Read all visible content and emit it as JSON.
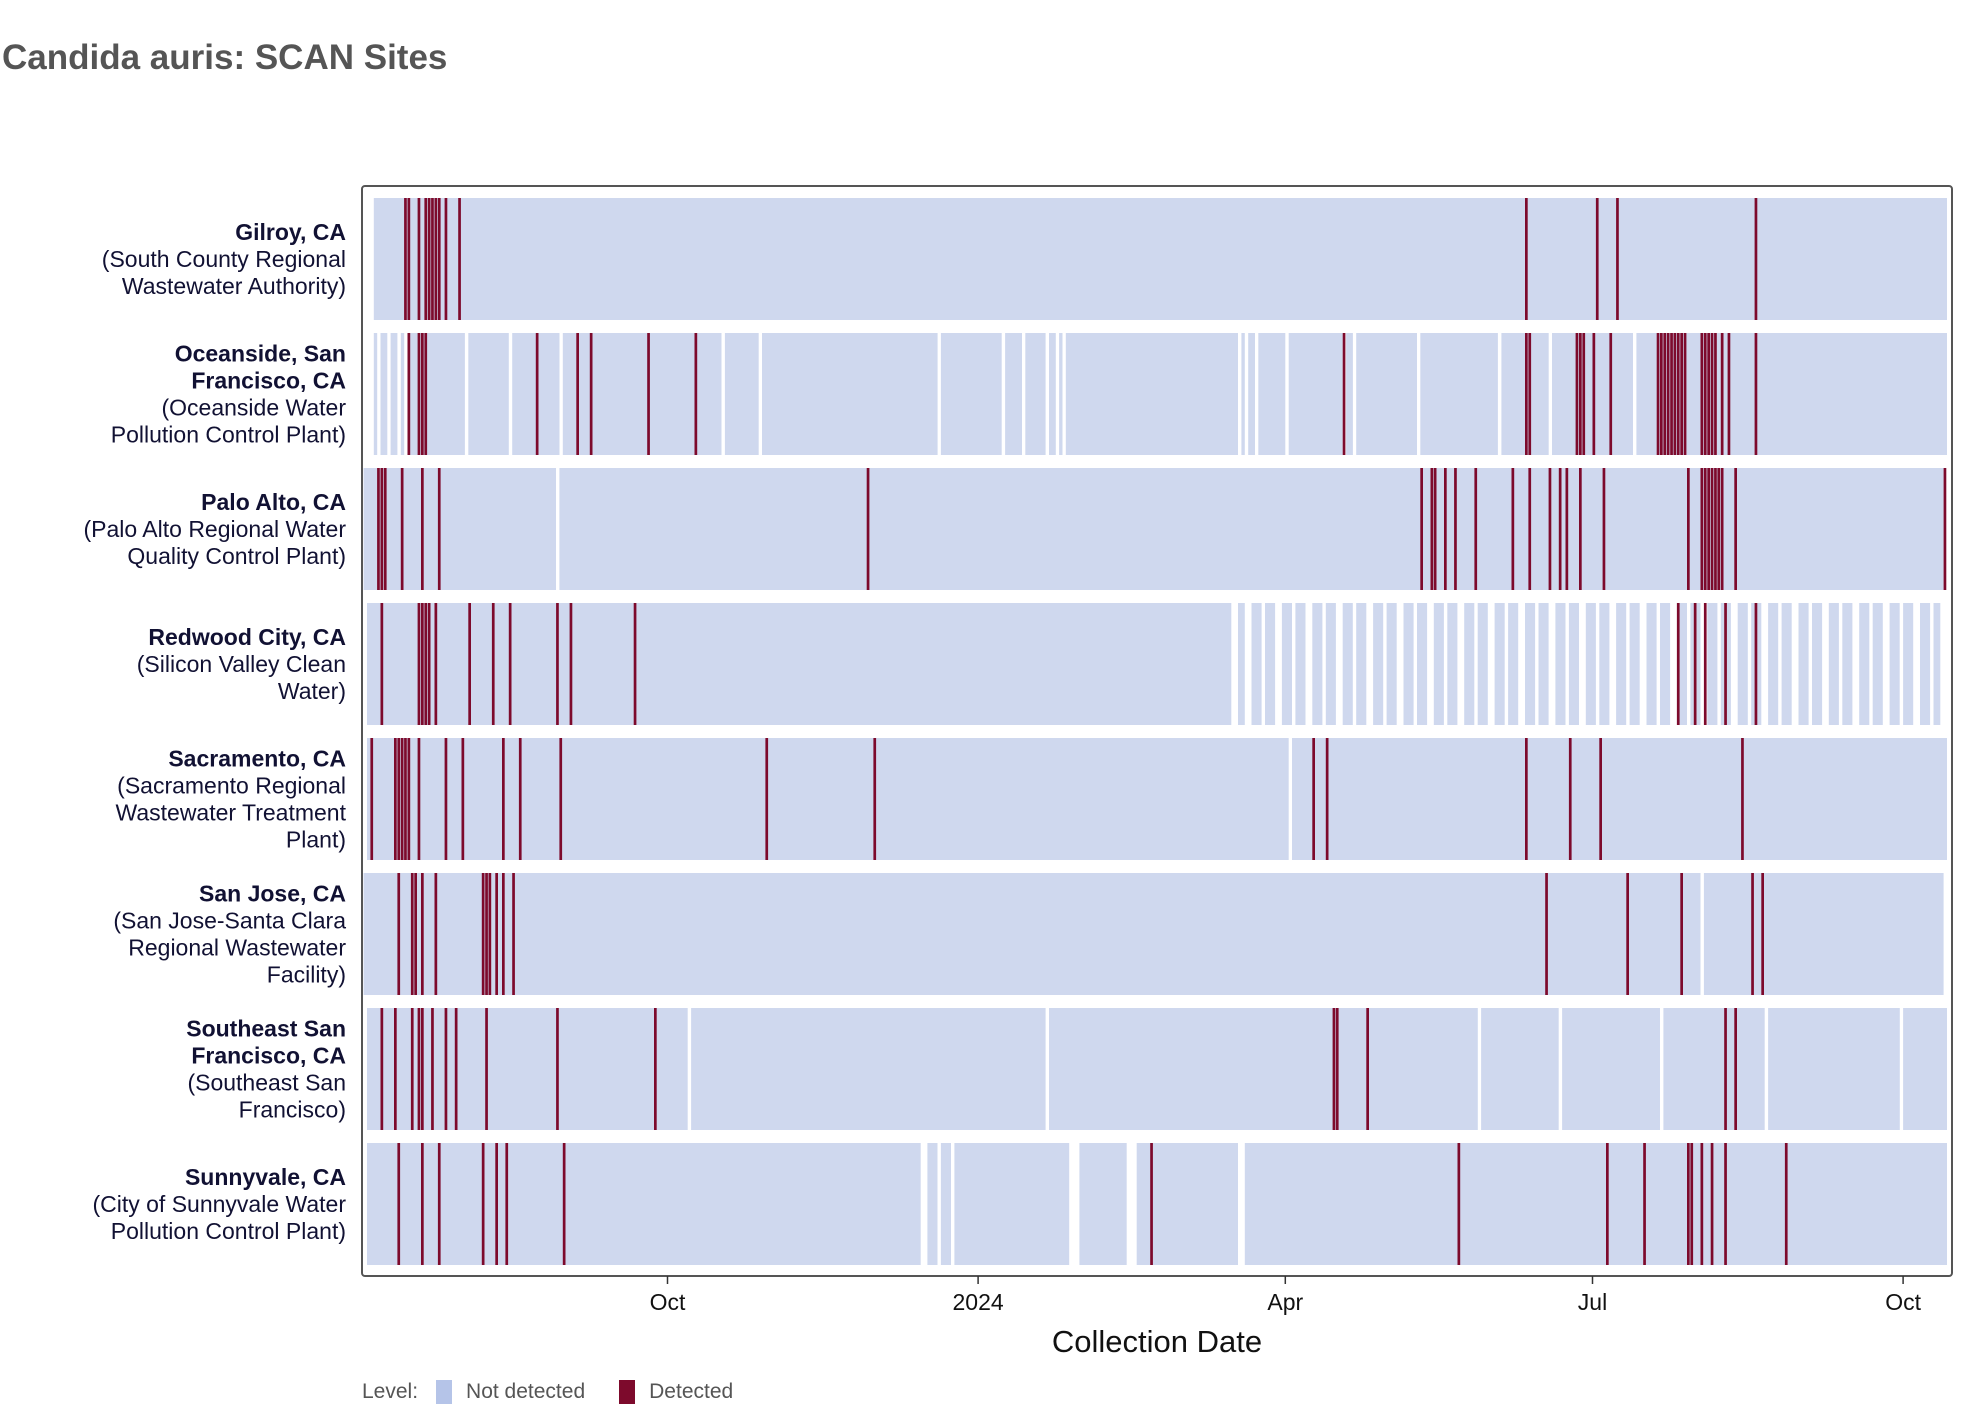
{
  "title": "Candida auris: SCAN Sites",
  "chart_data": {
    "type": "heatmap",
    "title": "Candida auris: SCAN Sites",
    "xlabel": "Collection Date",
    "ylabel": "",
    "x_range": [
      "2023-07-04",
      "2024-10-14"
    ],
    "x_ticks": [
      {
        "date": "2023-10-01",
        "label": "Oct"
      },
      {
        "date": "2024-01-01",
        "label": "2024"
      },
      {
        "date": "2024-04-01",
        "label": "Apr"
      },
      {
        "date": "2024-07-01",
        "label": "Jul"
      },
      {
        "date": "2024-10-01",
        "label": "Oct"
      }
    ],
    "grid": false,
    "legend": {
      "position": "bottom-left",
      "title": "Level:",
      "items": [
        {
          "label": "Not detected",
          "color": "#b5c4e8"
        },
        {
          "label": "Detected",
          "color": "#7d0a2c"
        }
      ]
    },
    "colors": {
      "not_detected": "#cfd8ee",
      "detected": "#7d0a2c",
      "frame": "#555555"
    },
    "sites": [
      {
        "name": "Gilroy, CA",
        "detail": [
          "(South County Regional",
          "Wastewater Authority)"
        ],
        "sampled": [
          [
            "2023-07-06",
            "2024-10-14"
          ]
        ],
        "detected": [
          "2023-07-15",
          "2023-07-16",
          "2023-07-19",
          "2023-07-21",
          "2023-07-22",
          "2023-07-23",
          "2023-07-24",
          "2023-07-25",
          "2023-07-27",
          "2023-07-31",
          "2024-06-11",
          "2024-07-02",
          "2024-07-08",
          "2024-08-18"
        ]
      },
      {
        "name": "Oceanside, San Francisco, CA",
        "detail": [
          "(Oceanside Water",
          "Pollution Control Plant)"
        ],
        "sampled": [
          [
            "2023-07-06",
            "2023-07-07"
          ],
          [
            "2023-07-08",
            "2023-07-10"
          ],
          [
            "2023-07-11",
            "2023-07-13"
          ],
          [
            "2023-07-14",
            "2023-07-15"
          ],
          [
            "2023-07-16",
            "2023-08-02"
          ],
          [
            "2023-08-03",
            "2023-08-15"
          ],
          [
            "2023-08-16",
            "2023-08-30"
          ],
          [
            "2023-08-31",
            "2023-10-17"
          ],
          [
            "2023-10-18",
            "2023-10-28"
          ],
          [
            "2023-10-29",
            "2023-12-20"
          ],
          [
            "2023-12-21",
            "2024-01-08"
          ],
          [
            "2024-01-09",
            "2024-01-14"
          ],
          [
            "2024-01-15",
            "2024-01-21"
          ],
          [
            "2024-01-22",
            "2024-01-24"
          ],
          [
            "2024-01-25",
            "2024-01-26"
          ],
          [
            "2024-01-27",
            "2024-03-18"
          ],
          [
            "2024-03-19",
            "2024-03-20"
          ],
          [
            "2024-03-21",
            "2024-03-23"
          ],
          [
            "2024-03-24",
            "2024-04-01"
          ],
          [
            "2024-04-02",
            "2024-04-18"
          ],
          [
            "2024-04-19",
            "2024-04-21"
          ],
          [
            "2024-04-22",
            "2024-05-10"
          ],
          [
            "2024-05-11",
            "2024-06-03"
          ],
          [
            "2024-06-04",
            "2024-06-18"
          ],
          [
            "2024-06-19",
            "2024-07-13"
          ],
          [
            "2024-07-14",
            "2024-10-14"
          ]
        ],
        "detected": [
          "2023-07-16",
          "2023-07-19",
          "2023-07-20",
          "2023-07-21",
          "2023-08-23",
          "2023-09-04",
          "2023-09-08",
          "2023-09-25",
          "2023-10-09",
          "2024-04-18",
          "2024-06-11",
          "2024-06-12",
          "2024-06-26",
          "2024-06-27",
          "2024-06-28",
          "2024-07-01",
          "2024-07-06",
          "2024-07-20",
          "2024-07-21",
          "2024-07-22",
          "2024-07-23",
          "2024-07-24",
          "2024-07-25",
          "2024-07-26",
          "2024-07-27",
          "2024-07-28",
          "2024-08-02",
          "2024-08-03",
          "2024-08-04",
          "2024-08-05",
          "2024-08-06",
          "2024-08-08",
          "2024-08-10",
          "2024-08-18"
        ]
      },
      {
        "name": "Palo Alto, CA",
        "detail": [
          "(Palo Alto Regional Water",
          "Quality Control Plant)"
        ],
        "sampled": [
          [
            "2023-07-03",
            "2023-08-29"
          ],
          [
            "2023-08-30",
            "2024-10-13"
          ]
        ],
        "detected": [
          "2023-07-07",
          "2023-07-08",
          "2023-07-09",
          "2023-07-14",
          "2023-07-20",
          "2023-07-25",
          "2023-11-29",
          "2024-05-11",
          "2024-05-14",
          "2024-05-15",
          "2024-05-18",
          "2024-05-21",
          "2024-05-27",
          "2024-06-07",
          "2024-06-12",
          "2024-06-18",
          "2024-06-21",
          "2024-06-23",
          "2024-06-27",
          "2024-07-04",
          "2024-07-29",
          "2024-08-02",
          "2024-08-03",
          "2024-08-04",
          "2024-08-05",
          "2024-08-06",
          "2024-08-07",
          "2024-08-08",
          "2024-08-12",
          "2024-10-13"
        ]
      },
      {
        "name": "Redwood City, CA",
        "detail": [
          "(Silicon Valley Clean",
          "Water)"
        ],
        "sampled": [
          [
            "2023-07-04",
            "2024-03-16"
          ],
          [
            "2024-03-18",
            "2024-03-20"
          ],
          [
            "2024-03-22",
            "2024-03-25"
          ],
          [
            "2024-03-26",
            "2024-03-29"
          ],
          [
            "2024-03-31",
            "2024-04-03"
          ],
          [
            "2024-04-04",
            "2024-04-07"
          ],
          [
            "2024-04-09",
            "2024-04-12"
          ],
          [
            "2024-04-13",
            "2024-04-16"
          ],
          [
            "2024-04-18",
            "2024-04-21"
          ],
          [
            "2024-04-22",
            "2024-04-25"
          ],
          [
            "2024-04-27",
            "2024-04-30"
          ],
          [
            "2024-05-01",
            "2024-05-04"
          ],
          [
            "2024-05-06",
            "2024-05-09"
          ],
          [
            "2024-05-10",
            "2024-05-13"
          ],
          [
            "2024-05-15",
            "2024-05-18"
          ],
          [
            "2024-05-19",
            "2024-05-22"
          ],
          [
            "2024-05-24",
            "2024-05-27"
          ],
          [
            "2024-05-28",
            "2024-05-31"
          ],
          [
            "2024-06-02",
            "2024-06-05"
          ],
          [
            "2024-06-06",
            "2024-06-09"
          ],
          [
            "2024-06-11",
            "2024-06-14"
          ],
          [
            "2024-06-15",
            "2024-06-18"
          ],
          [
            "2024-06-20",
            "2024-06-23"
          ],
          [
            "2024-06-24",
            "2024-06-27"
          ],
          [
            "2024-06-29",
            "2024-07-02"
          ],
          [
            "2024-07-03",
            "2024-07-06"
          ],
          [
            "2024-07-08",
            "2024-07-11"
          ],
          [
            "2024-07-12",
            "2024-07-15"
          ],
          [
            "2024-07-17",
            "2024-07-20"
          ],
          [
            "2024-07-21",
            "2024-07-24"
          ],
          [
            "2024-07-26",
            "2024-07-29"
          ],
          [
            "2024-07-30",
            "2024-08-02"
          ],
          [
            "2024-08-04",
            "2024-08-07"
          ],
          [
            "2024-08-08",
            "2024-08-11"
          ],
          [
            "2024-08-13",
            "2024-08-16"
          ],
          [
            "2024-08-17",
            "2024-08-20"
          ],
          [
            "2024-08-22",
            "2024-08-25"
          ],
          [
            "2024-08-26",
            "2024-08-29"
          ],
          [
            "2024-08-31",
            "2024-09-03"
          ],
          [
            "2024-09-04",
            "2024-09-07"
          ],
          [
            "2024-09-09",
            "2024-09-12"
          ],
          [
            "2024-09-13",
            "2024-09-16"
          ],
          [
            "2024-09-18",
            "2024-09-21"
          ],
          [
            "2024-09-22",
            "2024-09-25"
          ],
          [
            "2024-09-27",
            "2024-09-30"
          ],
          [
            "2024-10-01",
            "2024-10-04"
          ],
          [
            "2024-10-06",
            "2024-10-09"
          ],
          [
            "2024-10-10",
            "2024-10-12"
          ]
        ],
        "detected": [
          "2023-07-08",
          "2023-07-19",
          "2023-07-20",
          "2023-07-21",
          "2023-07-22",
          "2023-07-24",
          "2023-08-03",
          "2023-08-10",
          "2023-08-15",
          "2023-08-29",
          "2023-09-02",
          "2023-09-21",
          "2024-07-26",
          "2024-07-31",
          "2024-08-03",
          "2024-08-09",
          "2024-08-18"
        ]
      },
      {
        "name": "Sacramento, CA",
        "detail": [
          "(Sacramento Regional",
          "Wastewater Treatment",
          "Plant)"
        ],
        "sampled": [
          [
            "2023-07-04",
            "2024-04-02"
          ],
          [
            "2024-04-03",
            "2024-10-14"
          ]
        ],
        "detected": [
          "2023-07-05",
          "2023-07-12",
          "2023-07-13",
          "2023-07-14",
          "2023-07-15",
          "2023-07-16",
          "2023-07-19",
          "2023-07-27",
          "2023-08-01",
          "2023-08-13",
          "2023-08-18",
          "2023-08-30",
          "2023-10-30",
          "2023-12-01",
          "2024-04-09",
          "2024-04-13",
          "2024-06-11",
          "2024-06-24",
          "2024-07-03",
          "2024-08-14"
        ]
      },
      {
        "name": "San Jose, CA",
        "detail": [
          "(San Jose-Santa Clara",
          "Regional Wastewater",
          "Facility)"
        ],
        "sampled": [
          [
            "2023-07-03",
            "2023-07-04"
          ],
          [
            "2023-07-04",
            "2024-08-02"
          ],
          [
            "2024-08-03",
            "2024-10-13"
          ]
        ],
        "detected": [
          "2023-07-13",
          "2023-07-17",
          "2023-07-18",
          "2023-07-20",
          "2023-07-24",
          "2023-08-07",
          "2023-08-08",
          "2023-08-09",
          "2023-08-11",
          "2023-08-13",
          "2023-08-16",
          "2024-06-17",
          "2024-07-11",
          "2024-07-27",
          "2024-08-17",
          "2024-08-20"
        ]
      },
      {
        "name": "Southeast San Francisco, CA",
        "detail": [
          "(Southeast San",
          "Francisco)"
        ],
        "sampled": [
          [
            "2023-07-04",
            "2023-10-07"
          ],
          [
            "2023-10-08",
            "2024-01-21"
          ],
          [
            "2024-01-22",
            "2024-05-28"
          ],
          [
            "2024-05-29",
            "2024-06-21"
          ],
          [
            "2024-06-22",
            "2024-07-21"
          ],
          [
            "2024-07-22",
            "2024-08-21"
          ],
          [
            "2024-08-22",
            "2024-09-30"
          ],
          [
            "2024-10-01",
            "2024-10-14"
          ]
        ],
        "detected": [
          "2023-07-08",
          "2023-07-12",
          "2023-07-17",
          "2023-07-19",
          "2023-07-20",
          "2023-07-23",
          "2023-07-27",
          "2023-07-30",
          "2023-08-08",
          "2023-08-29",
          "2023-09-27",
          "2024-04-15",
          "2024-04-16",
          "2024-04-25",
          "2024-08-09",
          "2024-08-12"
        ]
      },
      {
        "name": "Sunnyvale, CA",
        "detail": [
          "(City of Sunnyvale Water",
          "Pollution Control Plant)"
        ],
        "sampled": [
          [
            "2023-07-04",
            "2023-12-15"
          ],
          [
            "2023-12-17",
            "2023-12-20"
          ],
          [
            "2023-12-21",
            "2023-12-24"
          ],
          [
            "2023-12-25",
            "2024-01-28"
          ],
          [
            "2024-01-31",
            "2024-02-14"
          ],
          [
            "2024-02-17",
            "2024-03-18"
          ],
          [
            "2024-03-20",
            "2024-10-14"
          ]
        ],
        "detected": [
          "2023-07-13",
          "2023-07-20",
          "2023-07-25",
          "2023-08-07",
          "2023-08-11",
          "2023-08-14",
          "2023-08-31",
          "2024-02-21",
          "2024-05-22",
          "2024-07-05",
          "2024-07-16",
          "2024-07-29",
          "2024-07-30",
          "2024-08-02",
          "2024-08-05",
          "2024-08-09",
          "2024-08-27"
        ]
      }
    ]
  }
}
